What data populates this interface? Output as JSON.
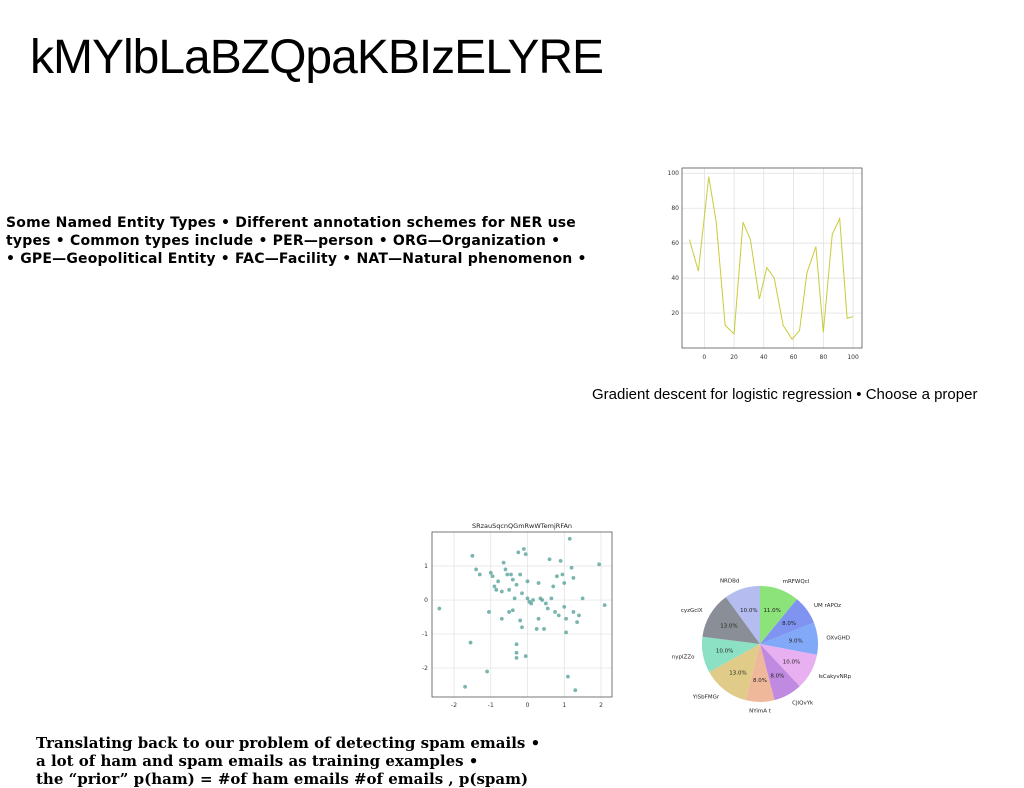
{
  "slide": {
    "title": "kMYlbLaBZQpaKBIzELYRE",
    "ner_lines": [
      "Some Named Entity Types • Different annotation schemes for NER use",
      "types • Common types include • PER—person • ORG—Organization •",
      "• GPE—Geopolitical Entity • FAC—Facility • NAT—Natural phenomenon •"
    ],
    "line_caption": "Gradient descent for logistic regression • Choose a proper",
    "spam_lines": [
      "Translating back to our problem of detecting spam emails •",
      "a lot of ham and spam emails as training examples •",
      "the “prior” p(ham) = #of ham emails #of emails , p(spam)"
    ]
  },
  "chart_data": [
    {
      "type": "line",
      "color": "#c8cc3a",
      "x": [
        -10,
        -4,
        3,
        8,
        14,
        20,
        26,
        31,
        37,
        42,
        47,
        53,
        59,
        64,
        69,
        75,
        80,
        86,
        91,
        96,
        100
      ],
      "y": [
        62,
        44,
        98,
        72,
        13,
        8,
        72,
        62,
        28,
        46,
        40,
        13,
        5,
        10,
        43,
        58,
        9,
        65,
        74,
        17,
        18
      ],
      "xlim": [
        -15,
        106
      ],
      "ylim": [
        0,
        103
      ],
      "xticks": [
        0,
        20,
        40,
        60,
        80,
        100
      ],
      "yticks": [
        20,
        40,
        60,
        80,
        100
      ],
      "grid": true
    },
    {
      "type": "scatter",
      "title": "SRzauSqcnQGmRwWTemjRFAn",
      "color": "#5aa39b",
      "xlim": [
        -2.6,
        2.3
      ],
      "ylim": [
        -2.85,
        2.0
      ],
      "xticks": [
        -2,
        -1,
        0,
        1,
        2
      ],
      "yticks": [
        -2,
        -1,
        0,
        1
      ],
      "grid": true,
      "points": [
        [
          -2.4,
          -0.25
        ],
        [
          -1.7,
          -2.55
        ],
        [
          -1.55,
          -1.25
        ],
        [
          -1.5,
          1.3
        ],
        [
          -1.4,
          0.9
        ],
        [
          -1.3,
          0.75
        ],
        [
          -1.1,
          -2.1
        ],
        [
          -1.05,
          -0.35
        ],
        [
          -1.0,
          0.8
        ],
        [
          -0.95,
          0.7
        ],
        [
          -0.9,
          0.4
        ],
        [
          -0.85,
          0.3
        ],
        [
          -0.8,
          0.55
        ],
        [
          -0.7,
          0.25
        ],
        [
          -0.7,
          -0.55
        ],
        [
          -0.65,
          1.1
        ],
        [
          -0.6,
          0.9
        ],
        [
          -0.55,
          0.75
        ],
        [
          -0.5,
          0.3
        ],
        [
          -0.5,
          -0.35
        ],
        [
          -0.45,
          0.75
        ],
        [
          -0.4,
          0.6
        ],
        [
          -0.4,
          -0.3
        ],
        [
          -0.35,
          0.05
        ],
        [
          -0.3,
          -1.3
        ],
        [
          -0.3,
          -1.55
        ],
        [
          -0.3,
          -1.7
        ],
        [
          -0.3,
          0.45
        ],
        [
          -0.25,
          1.4
        ],
        [
          -0.2,
          0.75
        ],
        [
          -0.2,
          -0.6
        ],
        [
          -0.15,
          0.2
        ],
        [
          -0.15,
          -0.8
        ],
        [
          -0.1,
          1.5
        ],
        [
          -0.05,
          1.35
        ],
        [
          -0.05,
          -1.65
        ],
        [
          0.0,
          0.55
        ],
        [
          0.0,
          0.05
        ],
        [
          0.05,
          -0.05
        ],
        [
          0.1,
          -0.1
        ],
        [
          0.15,
          0.0
        ],
        [
          0.25,
          -0.85
        ],
        [
          0.3,
          -0.55
        ],
        [
          0.3,
          0.5
        ],
        [
          0.35,
          0.05
        ],
        [
          0.4,
          0.0
        ],
        [
          0.45,
          -0.85
        ],
        [
          0.5,
          -0.1
        ],
        [
          0.55,
          -0.25
        ],
        [
          0.6,
          1.2
        ],
        [
          0.65,
          0.05
        ],
        [
          0.7,
          0.4
        ],
        [
          0.75,
          -0.35
        ],
        [
          0.8,
          0.7
        ],
        [
          0.85,
          -0.45
        ],
        [
          0.9,
          1.15
        ],
        [
          0.95,
          0.75
        ],
        [
          1.0,
          0.5
        ],
        [
          1.0,
          -0.2
        ],
        [
          1.05,
          -0.55
        ],
        [
          1.05,
          -0.95
        ],
        [
          1.1,
          -2.25
        ],
        [
          1.15,
          1.8
        ],
        [
          1.2,
          0.95
        ],
        [
          1.25,
          0.65
        ],
        [
          1.25,
          -0.35
        ],
        [
          1.3,
          -2.65
        ],
        [
          1.35,
          -0.65
        ],
        [
          1.4,
          -0.45
        ],
        [
          1.5,
          0.05
        ],
        [
          1.95,
          1.05
        ],
        [
          2.1,
          -0.15
        ]
      ]
    },
    {
      "type": "pie",
      "slices": [
        {
          "label": "mRFWQcl",
          "pct_label": "11.0%",
          "value": 11,
          "color": "#8be37a"
        },
        {
          "label": "UM rAPOz",
          "pct_label": "8.0%",
          "value": 8,
          "color": "#7f93f0"
        },
        {
          "label": "OXvGHD",
          "pct_label": "9.0%",
          "value": 9,
          "color": "#82a8f8"
        },
        {
          "label": "IsCakyvNRp",
          "pct_label": "10.0%",
          "value": 10,
          "color": "#e8b0f0"
        },
        {
          "label": "CJlQvYk",
          "pct_label": "8.0%",
          "value": 8,
          "color": "#c08ae0"
        },
        {
          "label": "NYimA t",
          "pct_label": "8.0%",
          "value": 8,
          "color": "#f0b89a"
        },
        {
          "label": "YlSbFMGr",
          "pct_label": "13.0%",
          "value": 13,
          "color": "#e0cc88"
        },
        {
          "label": "nyplZZo",
          "pct_label": "10.0%",
          "value": 10,
          "color": "#8ce0c4"
        },
        {
          "label": "cyzGclX",
          "pct_label": "13.0%",
          "value": 13,
          "color": "#8a8e96"
        },
        {
          "label": "NRDBd",
          "pct_label": "10.0%",
          "value": 10,
          "color": "#b4bcf0"
        }
      ]
    }
  ]
}
